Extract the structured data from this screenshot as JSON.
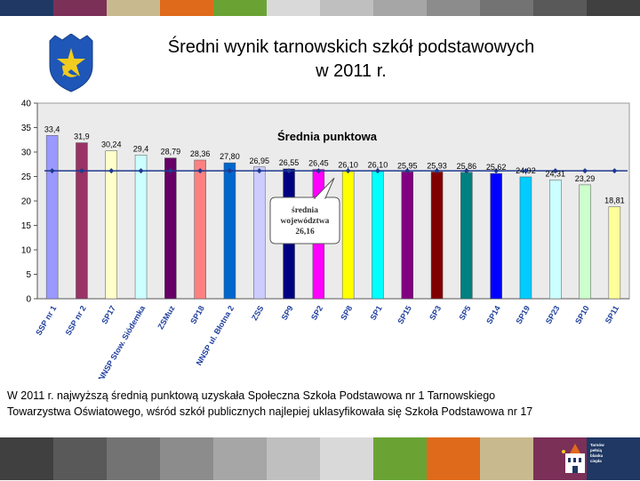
{
  "slide": {
    "title_line1": "Średni wynik tarnowskich szkół podstawowych",
    "title_line2": "w 2011 r.",
    "caption_line1": "W 2011 r. najwyższą średnią punktową uzyskała Społeczna Szkoła Podstawowa nr 1 Tarnowskiego",
    "caption_line2": "Towarzystwa Oświatowego, wśród szkół publicznych najlepiej uklasyfikowała się Szkoła Podstawowa nr 17",
    "logo_text": [
      "Tarnów",
      "pełnią",
      "blasku",
      "ciepła"
    ],
    "band_colors": [
      "#1f3864",
      "#7b3058",
      "#c9b98e",
      "#e06a1b",
      "#6aa334",
      "#d9d9d9",
      "#bfbfbf",
      "#a6a6a6",
      "#8c8c8c",
      "#737373",
      "#595959",
      "#404040"
    ]
  },
  "chart_data": {
    "type": "bar",
    "title": "Średnia punktowa",
    "categories": [
      "SSP nr 1",
      "SSP nr 2",
      "SP17",
      "NNSP Stow. Siódemka",
      "ZSMuz",
      "SP18",
      "NNSP ul. Błotna 2",
      "ZSS",
      "SP9",
      "SP2",
      "SP8",
      "SP1",
      "SP15",
      "SP3",
      "SP5",
      "SP14",
      "SP19",
      "SP23",
      "SP10",
      "SP11"
    ],
    "values": [
      33.4,
      31.9,
      30.24,
      29.4,
      28.79,
      28.36,
      27.8,
      26.95,
      26.55,
      26.45,
      26.1,
      26.1,
      25.95,
      25.93,
      25.86,
      25.62,
      24.92,
      24.31,
      23.29,
      18.81
    ],
    "value_labels": [
      "33,4",
      "31,9",
      "30,24",
      "29,4",
      "28,79",
      "28,36",
      "27,80",
      "26,95",
      "26,55",
      "26,45",
      "26,10",
      "26,10",
      "25,95",
      "25,93",
      "25,86",
      "25,62",
      "24,92",
      "24,31",
      "23,29",
      "18,81"
    ],
    "colors": [
      "#9999ff",
      "#993366",
      "#ffffcc",
      "#ccffff",
      "#660066",
      "#ff8080",
      "#0066cc",
      "#ccccff",
      "#000080",
      "#ff00ff",
      "#ffff00",
      "#00ffff",
      "#800080",
      "#800000",
      "#008080",
      "#0000ff",
      "#00ccff",
      "#ccffff",
      "#ccffcc",
      "#ffff99"
    ],
    "reference_line": {
      "value": 26.16,
      "label_lines": [
        "średnia",
        "województwa",
        "26,16"
      ]
    },
    "ylim": [
      0,
      40
    ],
    "yticks": [
      0,
      5,
      10,
      15,
      20,
      25,
      30,
      35,
      40
    ],
    "grid": false,
    "xlabel": "",
    "ylabel": ""
  }
}
